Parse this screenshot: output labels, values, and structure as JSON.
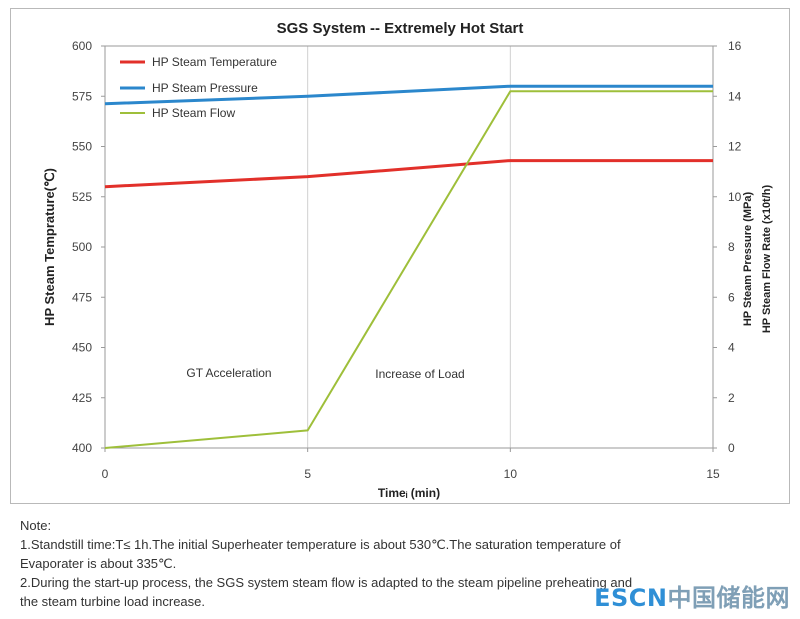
{
  "chart_data": {
    "type": "line",
    "title": "SGS System -- Extremely Hot Start",
    "xlabel": "Timeᵢ (min)",
    "ylabel_left": "HP Steam Temprature(℃)",
    "ylabel_right": [
      "HP Steam Pressure (MPa)",
      "HP Steam Flow Rate (x10t/h)"
    ],
    "x_ticks": [
      "0",
      "5",
      "10",
      "15"
    ],
    "xlim": [
      0,
      15
    ],
    "y_left_ticks": [
      "400",
      "425",
      "450",
      "475",
      "500",
      "525",
      "550",
      "575",
      "600"
    ],
    "ylim_left": [
      400,
      600
    ],
    "y_right_ticks": [
      "0",
      "2",
      "4",
      "6",
      "8",
      "10",
      "12",
      "14",
      "16"
    ],
    "ylim_right": [
      0,
      16
    ],
    "grid": "vertical",
    "legend_position": "top-left",
    "series": [
      {
        "name": "HP Steam Temperature",
        "axis": "left",
        "color": "#e2302a",
        "x": [
          0,
          5,
          10,
          15
        ],
        "y": [
          530,
          535,
          543,
          543
        ]
      },
      {
        "name": "HP Steam Pressure",
        "axis": "right",
        "color": "#2b87cc",
        "x": [
          0,
          5,
          10,
          15
        ],
        "y": [
          13.7,
          14.0,
          14.4,
          14.4
        ]
      },
      {
        "name": "HP Steam Flow",
        "axis": "right",
        "color": "#9ebf3a",
        "x": [
          0,
          5,
          10,
          15
        ],
        "y": [
          0,
          0.7,
          14.2,
          14.2
        ]
      }
    ],
    "annotations": [
      "GT Acceleration",
      "Increase of Load"
    ]
  },
  "notes": {
    "heading": "Note:",
    "line1": "1.Standstill time:T≤ 1h.The initial Superheater temperature is about 530℃.The saturation temperature of",
    "line2": "Evaporater is about 335℃.",
    "line3": "2.During the start-up process, the SGS system steam flow is adapted to the steam pipeline preheating and",
    "line4": "the steam turbine load increase."
  },
  "watermark": {
    "latin": "ESCN",
    "chinese": "中国储能网"
  }
}
